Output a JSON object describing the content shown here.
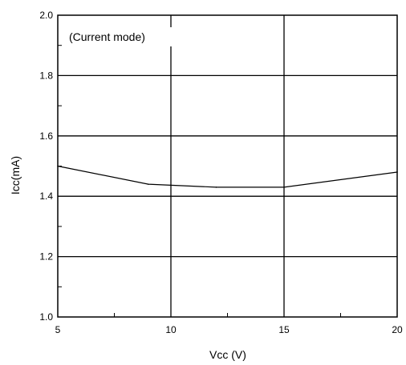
{
  "chart_data": {
    "type": "line",
    "title": "",
    "annotation": "(Current mode)",
    "xlabel": "Vcc (V)",
    "ylabel": "Icc(mA)",
    "xlim": [
      5,
      20
    ],
    "ylim": [
      1.0,
      2.0
    ],
    "xticks": [
      5,
      10,
      15,
      20
    ],
    "xtick_labels": [
      "5",
      "10",
      "15",
      "20"
    ],
    "yticks": [
      1.0,
      1.2,
      1.4,
      1.6,
      1.8,
      2.0
    ],
    "ytick_labels": [
      "1.0",
      "1.2",
      "1.4",
      "1.6",
      "1.8",
      "2.0"
    ],
    "grid": true,
    "series": [
      {
        "x": [
          5,
          9,
          12,
          15,
          20
        ],
        "y": [
          1.5,
          1.44,
          1.43,
          1.43,
          1.48
        ]
      }
    ]
  }
}
